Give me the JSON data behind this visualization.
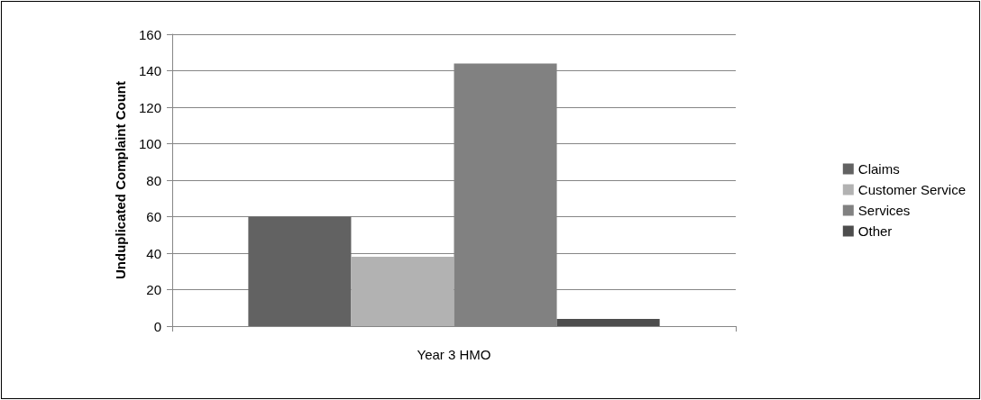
{
  "chart_data": {
    "type": "bar",
    "ylabel": "Unduplicated Complaint Count",
    "categories": [
      "Year 3 HMO"
    ],
    "series": [
      {
        "name": "Claims",
        "color": "#626262",
        "values": [
          60
        ]
      },
      {
        "name": "Customer Service",
        "color": "#b2b2b2",
        "values": [
          38
        ]
      },
      {
        "name": "Services",
        "color": "#818181",
        "values": [
          144
        ]
      },
      {
        "name": "Other",
        "color": "#4d4d4d",
        "values": [
          4
        ]
      }
    ],
    "ylim": [
      0,
      160
    ],
    "yticks": [
      0,
      20,
      40,
      60,
      80,
      100,
      120,
      140,
      160
    ],
    "grid": "y",
    "legend": "right"
  }
}
